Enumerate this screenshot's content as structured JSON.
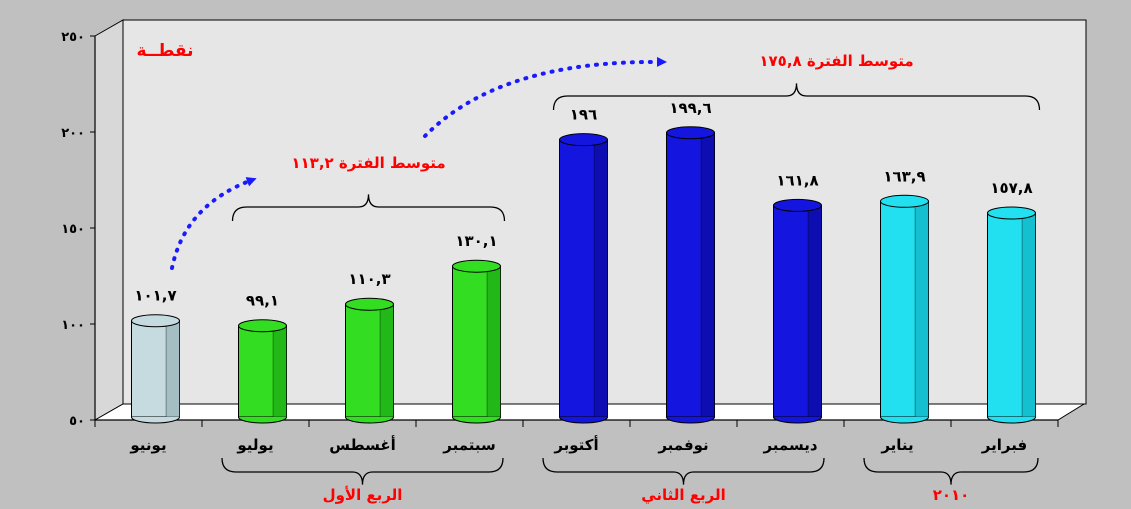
{
  "chart_data": {
    "type": "bar",
    "unit_label": "نقطــة",
    "ylim": [
      50,
      250
    ],
    "yticks": [
      "٥٠",
      "١٠٠",
      "١٥٠",
      "٢٠٠",
      "٢٥٠"
    ],
    "ytick_values": [
      50,
      100,
      150,
      200,
      250
    ],
    "categories": [
      "يونيو",
      "يوليو",
      "أغسطس",
      "سبتمبر",
      "أكتوبر",
      "نوفمبر",
      "ديسمبر",
      "يناير",
      "فبراير"
    ],
    "values": [
      101.7,
      99.1,
      110.3,
      130.1,
      196,
      199.6,
      161.8,
      163.9,
      157.8
    ],
    "value_labels": [
      "١٠١,٧",
      "٩٩,١",
      "١١٠,٣",
      "١٣٠,١",
      "١٩٦",
      "١٩٩,٦",
      "١٦١,٨",
      "١٦٣,٩",
      "١٥٧,٨"
    ],
    "bar_colors": [
      "#c6dbe0",
      "#33dd22",
      "#33dd22",
      "#33dd22",
      "#1515e0",
      "#1515e0",
      "#1515e0",
      "#22e0f0",
      "#22e0f0"
    ],
    "bar_dark": [
      "#8aa5ad",
      "#149a10",
      "#149a10",
      "#149a10",
      "#07078a",
      "#07078a",
      "#07078a",
      "#0aa4b4",
      "#0aa4b4"
    ],
    "groups": [
      {
        "label": "الربع الأول",
        "from": 1,
        "to": 3
      },
      {
        "label": "الربع الثاني",
        "from": 4,
        "to": 6
      },
      {
        "label": "٢٠١٠",
        "from": 7,
        "to": 8
      }
    ],
    "annotations": [
      {
        "text": "متوسط الفترة ١١٣,٢",
        "from": 1,
        "to": 3
      },
      {
        "text": "متوسط الفترة ١٧٥,٨",
        "from": 4,
        "to": 8
      }
    ],
    "grid": false
  }
}
